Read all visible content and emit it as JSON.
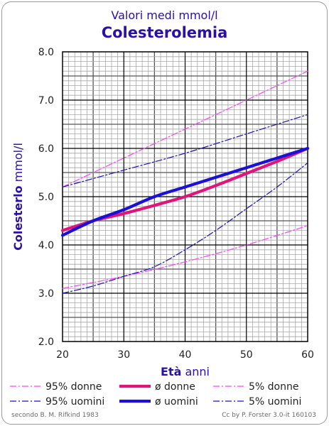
{
  "subtitle": "Valori medi mmol/l",
  "title": "Colesterolemia",
  "footer": {
    "source": "secondo B. M. Rifkind 1983",
    "credit": "Cc by P. Forster 3.0-it 160103"
  },
  "colors": {
    "women": "#e0147a",
    "women_band": "#ff40ff",
    "men": "#1a10d8",
    "men_band": "#1a10c0",
    "title": "#2a0fa8"
  },
  "chart_data": {
    "type": "line",
    "title": "Colesterolemia",
    "subtitle": "Valori medi mmol/l",
    "xlabel": {
      "bold": "Età",
      "normal": "anni"
    },
    "ylabel": {
      "bold": "Colesterlo",
      "normal": "mmol/l"
    },
    "xlim": [
      20,
      60
    ],
    "ylim": [
      2.0,
      8.0
    ],
    "xticks": [
      20,
      30,
      40,
      50,
      60
    ],
    "yticks": [
      "2.0",
      "3.0",
      "4.0",
      "5.0",
      "6.0",
      "7.0",
      "8.0"
    ],
    "grid": true,
    "legend_position": "bottom",
    "series": [
      {
        "name": "95% donne",
        "style": "dashdot",
        "x": [
          20,
          30,
          40,
          50,
          60
        ],
        "y": [
          5.2,
          5.8,
          6.4,
          7.0,
          7.6
        ]
      },
      {
        "name": "ø donne",
        "style": "thick",
        "x": [
          20,
          25,
          30,
          35,
          40,
          45,
          50,
          55,
          60
        ],
        "y": [
          4.3,
          4.5,
          4.65,
          4.82,
          5.0,
          5.23,
          5.48,
          5.73,
          6.0
        ]
      },
      {
        "name": "5% donne",
        "style": "dashdot",
        "x": [
          20,
          30,
          40,
          50,
          60
        ],
        "y": [
          3.1,
          3.35,
          3.65,
          4.0,
          4.4
        ]
      },
      {
        "name": "95% uomini",
        "style": "dashdot",
        "x": [
          20,
          30,
          40,
          50,
          60
        ],
        "y": [
          5.2,
          5.55,
          5.9,
          6.3,
          6.7
        ]
      },
      {
        "name": "ø uomini",
        "style": "thick",
        "x": [
          20,
          25,
          30,
          35,
          40,
          45,
          50,
          55,
          60
        ],
        "y": [
          4.2,
          4.5,
          4.73,
          5.0,
          5.2,
          5.4,
          5.6,
          5.8,
          6.0
        ]
      },
      {
        "name": "5% uomini",
        "style": "dashdot",
        "x": [
          20,
          25,
          30,
          35,
          40,
          45,
          50,
          55,
          60
        ],
        "y": [
          3.0,
          3.15,
          3.35,
          3.55,
          3.9,
          4.3,
          4.75,
          5.2,
          5.7
        ]
      }
    ]
  }
}
